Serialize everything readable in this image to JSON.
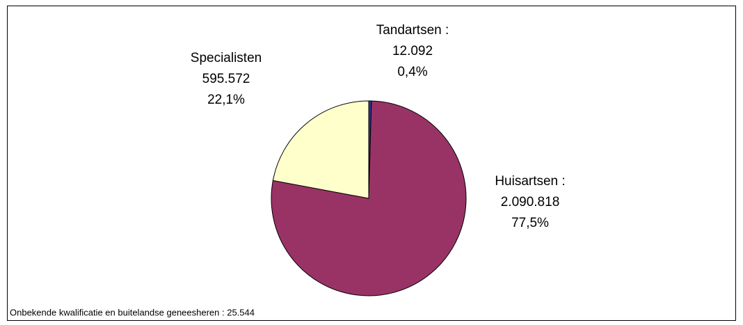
{
  "chart_data": {
    "type": "pie",
    "categories": [
      "Tandartsen :",
      "Huisartsen :",
      "Specialisten"
    ],
    "values": [
      12092,
      2090818,
      595572
    ],
    "value_labels": [
      "12.092",
      "2.090.818",
      "595.572"
    ],
    "percentages": [
      0.4,
      77.5,
      22.1
    ],
    "percentage_labels": [
      "0,4%",
      "77,5%",
      "22,1%"
    ],
    "colors": [
      "#333399",
      "#993366",
      "#ffffcc"
    ],
    "note": "Onbekende kwalificatie en buitelandse geneesheren : 25.544"
  }
}
